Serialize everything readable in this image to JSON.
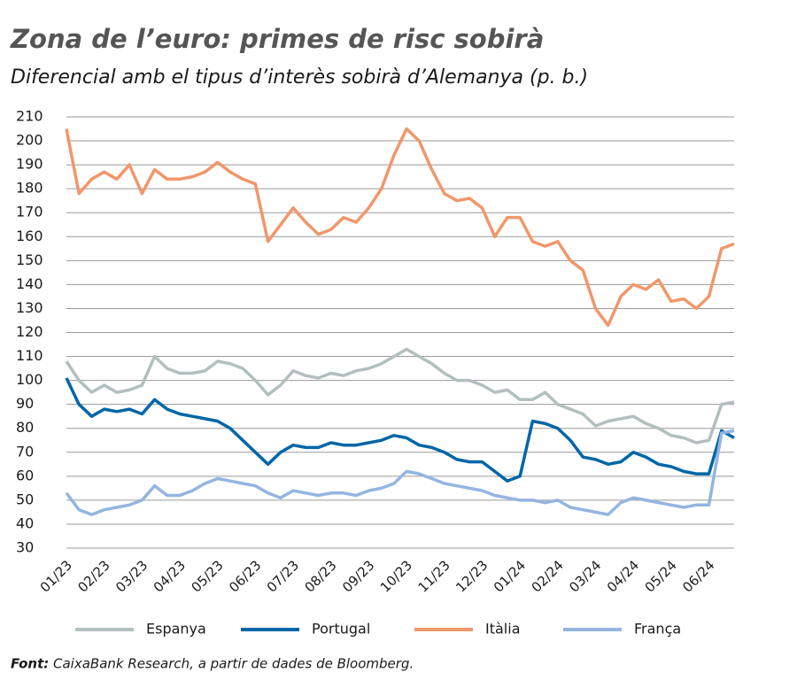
{
  "chart_data": {
    "type": "line",
    "title": "Zona de l’euro: primes de risc sobirà",
    "subtitle": "Diferencial amb el tipus d’interès sobirà d’Alemanya (p. b.)",
    "source_label": "Font:",
    "source": "CaixaBank Research, a partir de dades de Bloomberg.",
    "categories": [
      "01/23",
      null,
      null,
      "02/23",
      null,
      null,
      "03/23",
      null,
      null,
      "04/23",
      null,
      null,
      "05/23",
      null,
      null,
      "06/23",
      null,
      null,
      "07/23",
      null,
      null,
      "08/23",
      null,
      null,
      "09/23",
      null,
      null,
      "10/23",
      null,
      null,
      "11/23",
      null,
      null,
      "12/23",
      null,
      null,
      "01/24",
      null,
      null,
      "02/24",
      null,
      null,
      "03/24",
      null,
      null,
      "04/24",
      null,
      null,
      "05/24",
      null,
      null,
      "06/24",
      null,
      null
    ],
    "series": [
      {
        "name": "Espanya",
        "color": "#b3bfbf",
        "values": [
          108,
          100,
          95,
          98,
          95,
          96,
          98,
          110,
          105,
          103,
          103,
          104,
          108,
          107,
          105,
          100,
          94,
          98,
          104,
          102,
          101,
          103,
          102,
          104,
          105,
          107,
          110,
          113,
          110,
          107,
          103,
          100,
          100,
          98,
          95,
          96,
          92,
          92,
          95,
          90,
          88,
          86,
          81,
          83,
          84,
          85,
          82,
          80,
          77,
          76,
          74,
          75,
          90,
          91
        ]
      },
      {
        "name": "Portugal",
        "color": "#0066a6",
        "values": [
          101,
          90,
          85,
          88,
          87,
          88,
          86,
          92,
          88,
          86,
          85,
          84,
          83,
          80,
          75,
          70,
          65,
          70,
          73,
          72,
          72,
          74,
          73,
          73,
          74,
          75,
          77,
          76,
          73,
          72,
          70,
          67,
          66,
          66,
          62,
          58,
          60,
          83,
          82,
          80,
          75,
          68,
          67,
          65,
          66,
          70,
          68,
          65,
          64,
          62,
          61,
          61,
          79,
          76
        ]
      },
      {
        "name": "Itàlia",
        "color": "#f0976b",
        "values": [
          205,
          178,
          184,
          187,
          184,
          190,
          178,
          188,
          184,
          184,
          185,
          187,
          191,
          187,
          184,
          182,
          158,
          165,
          172,
          166,
          161,
          163,
          168,
          166,
          172,
          180,
          194,
          205,
          200,
          188,
          178,
          175,
          176,
          172,
          160,
          168,
          168,
          158,
          156,
          158,
          150,
          146,
          130,
          123,
          135,
          140,
          138,
          142,
          133,
          134,
          130,
          135,
          155,
          157
        ]
      },
      {
        "name": "França",
        "color": "#93b5e1",
        "values": [
          53,
          46,
          44,
          46,
          47,
          48,
          50,
          56,
          52,
          52,
          54,
          57,
          59,
          58,
          57,
          56,
          53,
          51,
          54,
          53,
          52,
          53,
          53,
          52,
          54,
          55,
          57,
          62,
          61,
          59,
          57,
          56,
          55,
          54,
          52,
          51,
          50,
          50,
          49,
          50,
          47,
          46,
          45,
          44,
          49,
          51,
          50,
          49,
          48,
          47,
          48,
          48,
          78,
          79
        ]
      }
    ],
    "ylim": [
      30,
      210
    ],
    "yticks": [
      30,
      40,
      50,
      60,
      70,
      80,
      90,
      100,
      110,
      120,
      130,
      140,
      150,
      160,
      170,
      180,
      190,
      200,
      210
    ],
    "grid": true
  }
}
